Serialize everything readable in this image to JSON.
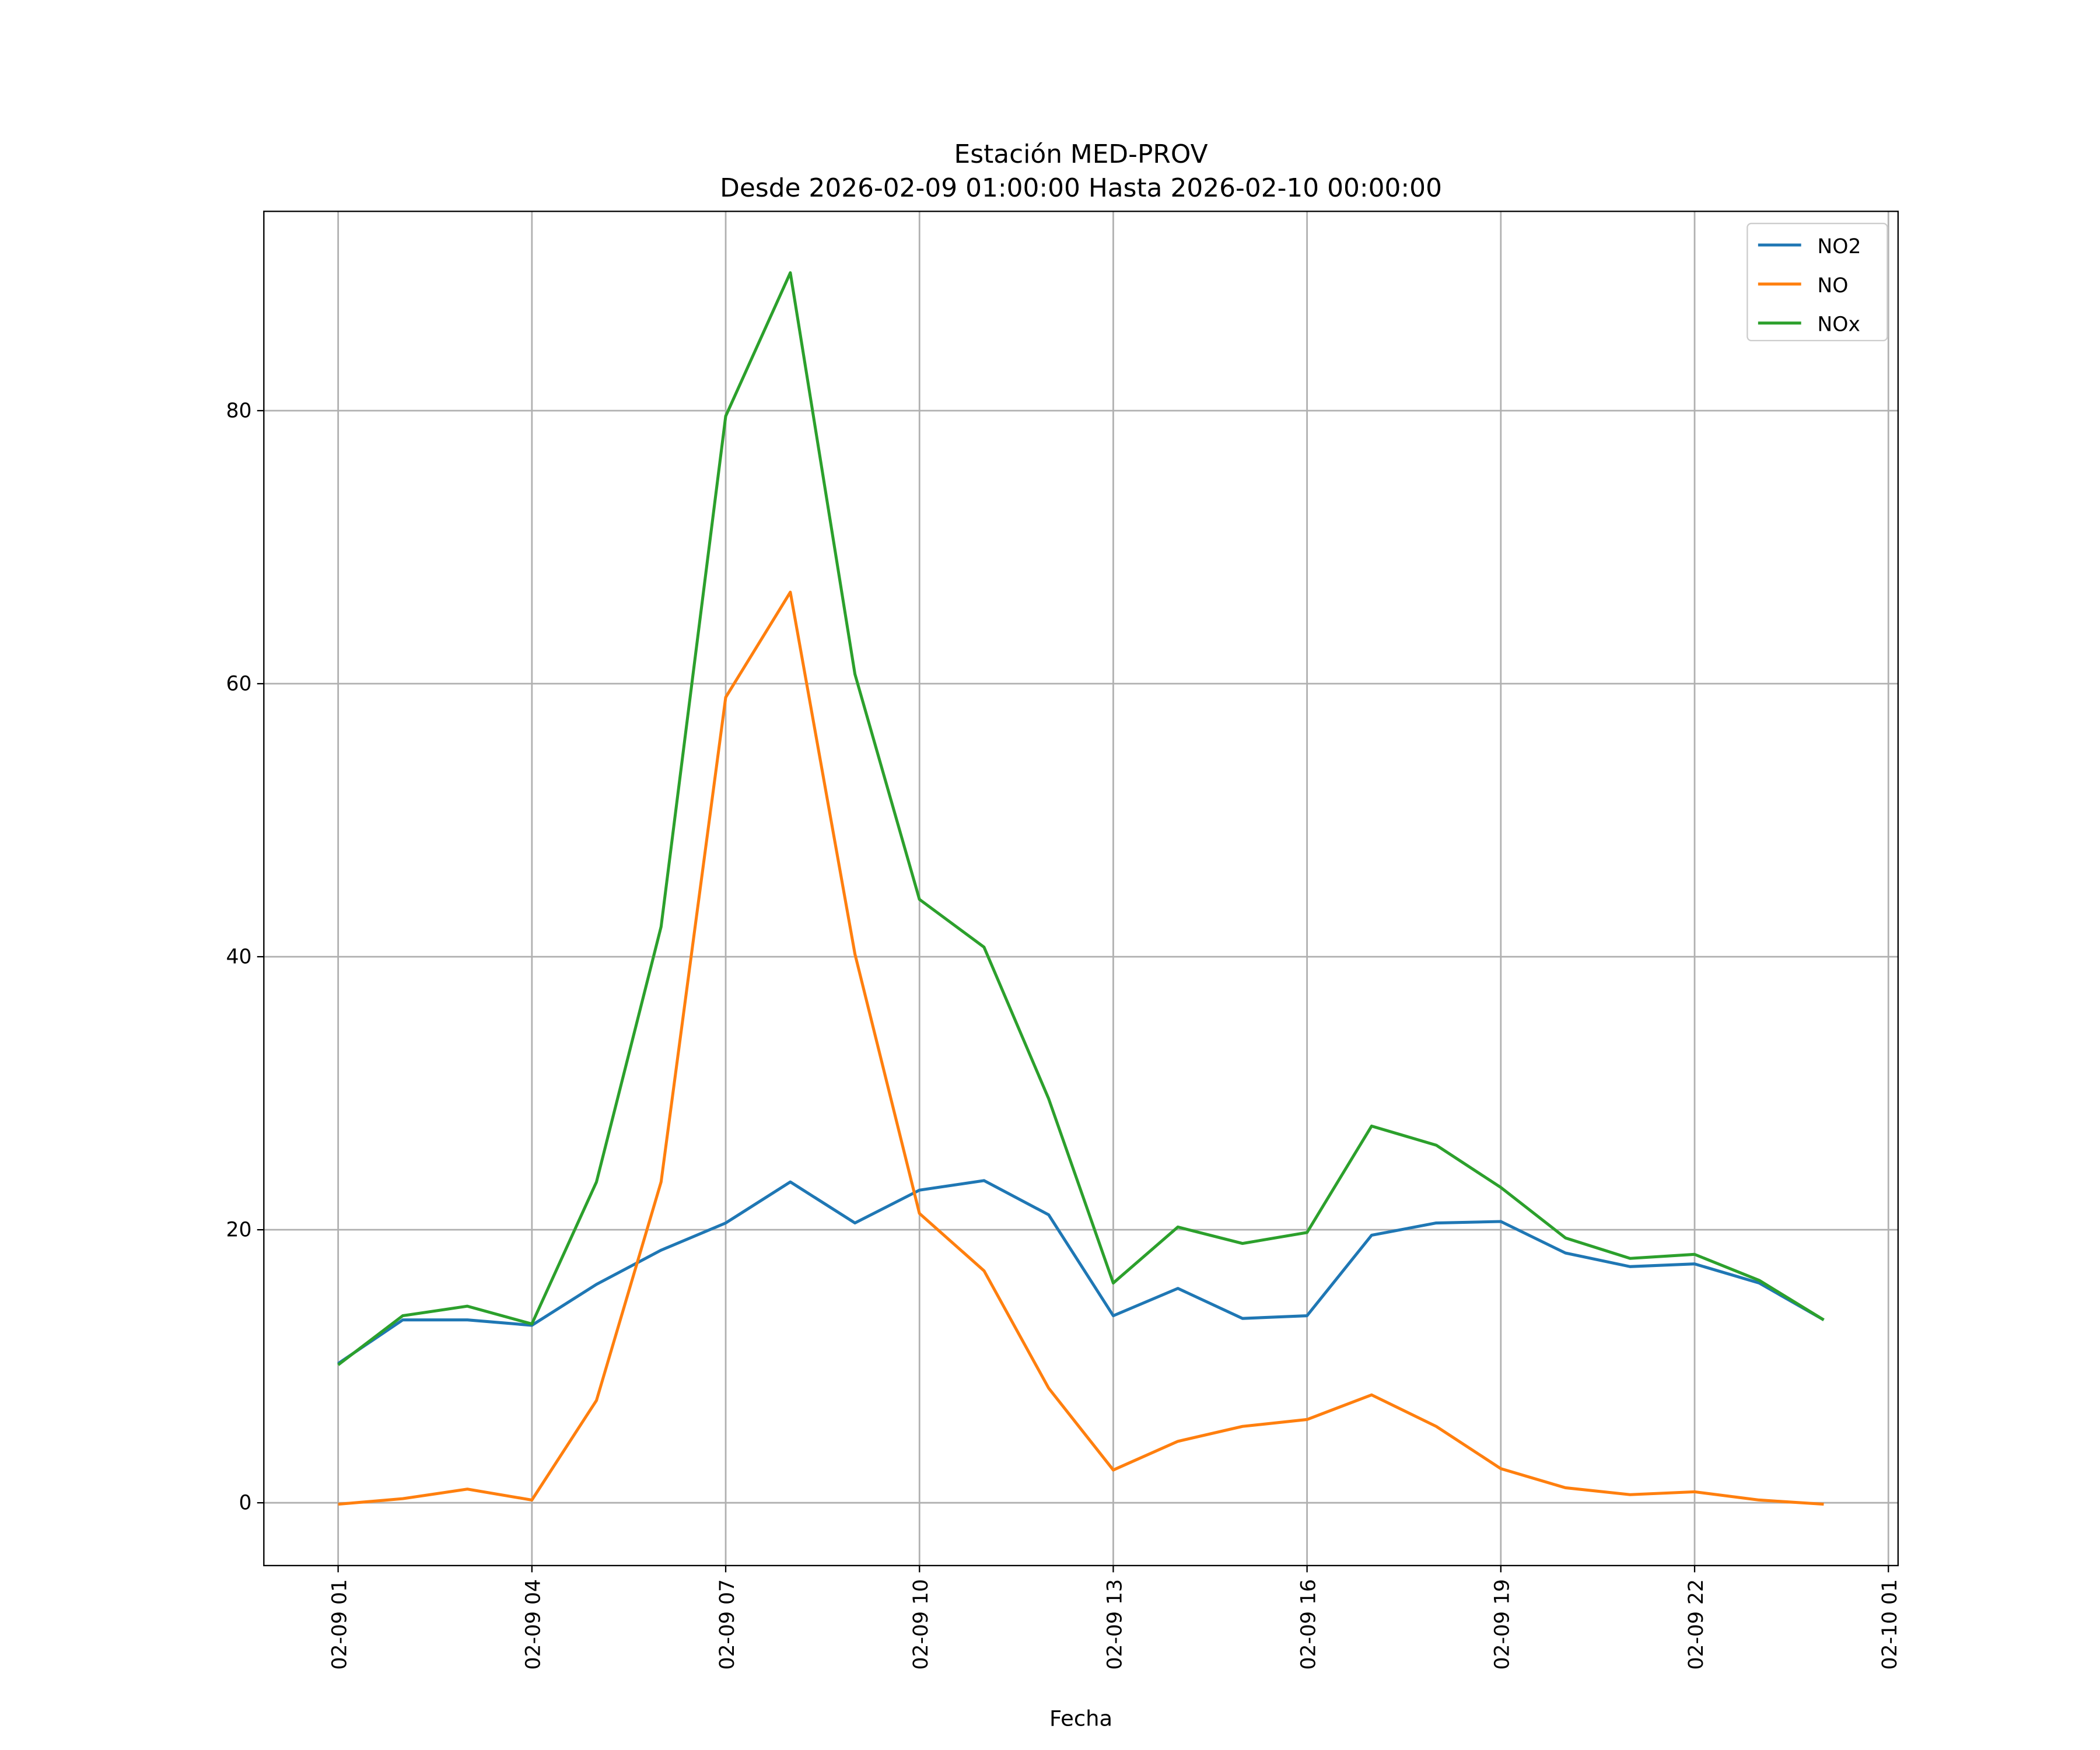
{
  "chart_data": {
    "type": "line",
    "title": "Estación MED-PROV",
    "subtitle": "Desde 2026-02-09 01:00:00 Hasta 2026-02-10 00:00:00",
    "xlabel": "Fecha",
    "ylabel": "",
    "x_hours": [
      1,
      2,
      3,
      4,
      5,
      6,
      7,
      8,
      9,
      10,
      11,
      12,
      13,
      14,
      15,
      16,
      17,
      18,
      19,
      20,
      21,
      22,
      23,
      24
    ],
    "xlim": [
      -0.15,
      25.15
    ],
    "ylim": [
      -4.6,
      94.6
    ],
    "x_ticks": [
      {
        "value": 1,
        "label": "02-09 01"
      },
      {
        "value": 4,
        "label": "02-09 04"
      },
      {
        "value": 7,
        "label": "02-09 07"
      },
      {
        "value": 10,
        "label": "02-09 10"
      },
      {
        "value": 13,
        "label": "02-09 13"
      },
      {
        "value": 16,
        "label": "02-09 16"
      },
      {
        "value": 19,
        "label": "02-09 19"
      },
      {
        "value": 22,
        "label": "02-09 22"
      },
      {
        "value": 25,
        "label": "02-10 01"
      }
    ],
    "y_ticks": [
      {
        "value": 0,
        "label": "0"
      },
      {
        "value": 20,
        "label": "20"
      },
      {
        "value": 40,
        "label": "40"
      },
      {
        "value": 60,
        "label": "60"
      },
      {
        "value": 80,
        "label": "80"
      }
    ],
    "grid": true,
    "legend_position": "top-right",
    "series": [
      {
        "name": "NO2",
        "color": "#1f77b4",
        "values": [
          10.2,
          13.4,
          13.4,
          13.0,
          16.0,
          18.5,
          20.5,
          23.5,
          20.5,
          22.9,
          23.6,
          21.1,
          13.7,
          15.7,
          13.5,
          13.7,
          19.6,
          20.5,
          20.6,
          18.3,
          17.3,
          17.5,
          16.1,
          13.4
        ]
      },
      {
        "name": "NO",
        "color": "#ff7f0e",
        "values": [
          -0.1,
          0.3,
          1.0,
          0.2,
          7.5,
          23.5,
          59.0,
          66.7,
          40.2,
          21.2,
          17.0,
          8.4,
          2.4,
          4.5,
          5.6,
          6.1,
          7.9,
          5.6,
          2.5,
          1.1,
          0.6,
          0.8,
          0.2,
          -0.1
        ]
      },
      {
        "name": "NOx",
        "color": "#2ca02c",
        "values": [
          10.1,
          13.7,
          14.4,
          13.1,
          23.5,
          42.2,
          79.6,
          90.1,
          60.7,
          44.2,
          40.7,
          29.6,
          16.1,
          20.2,
          19.0,
          19.8,
          27.6,
          26.2,
          23.1,
          19.4,
          17.9,
          18.2,
          16.3,
          13.4
        ]
      }
    ]
  }
}
